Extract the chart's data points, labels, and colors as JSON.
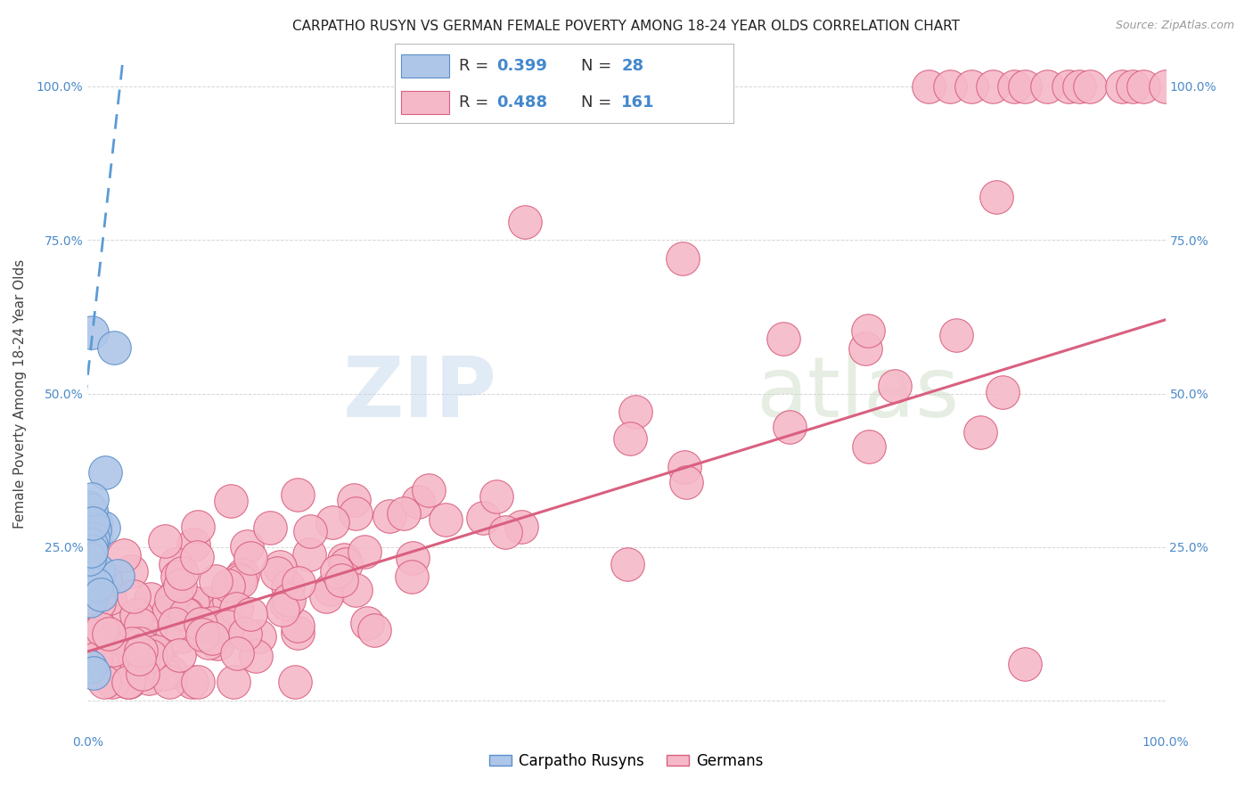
{
  "title": "CARPATHO RUSYN VS GERMAN FEMALE POVERTY AMONG 18-24 YEAR OLDS CORRELATION CHART",
  "source": "Source: ZipAtlas.com",
  "ylabel": "Female Poverty Among 18-24 Year Olds",
  "xlim": [
    0.0,
    1.0
  ],
  "ylim": [
    -0.05,
    1.05
  ],
  "grid_color": "#cccccc",
  "background_color": "#ffffff",
  "carpatho_color": "#aec6e8",
  "carpatho_edge_color": "#5b8fc9",
  "german_color": "#f5b8c8",
  "german_edge_color": "#d96080",
  "legend_label_1": "Carpatho Rusyns",
  "legend_label_2": "Germans",
  "watermark_zip": "ZIP",
  "watermark_atlas": "atlas",
  "title_fontsize": 11,
  "axis_label_fontsize": 11,
  "tick_fontsize": 10,
  "legend_fontsize": 13,
  "marker_size": 9,
  "line_color_blue": "#5b9bd5",
  "line_color_pink": "#d96080",
  "cr_seed": 42,
  "g_seed": 99
}
